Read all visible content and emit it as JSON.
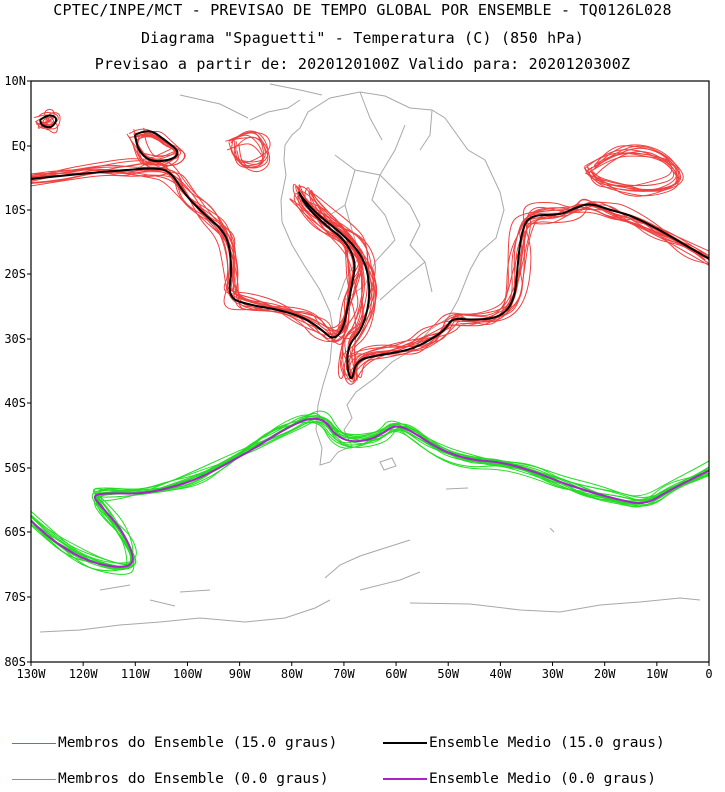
{
  "header": {
    "line1": "CPTEC/INPE/MCT - PREVISAO DE TEMPO GLOBAL POR ENSEMBLE - TQ0126L028",
    "line2": "Diagrama \"Spaguetti\" - Temperatura (C) (850 hPa)",
    "line3": "Previsao a partir de: 2020120100Z  Valido para: 2020120300Z"
  },
  "map": {
    "lat_ticks": [
      "10N",
      "EQ",
      "10S",
      "20S",
      "30S",
      "40S",
      "50S",
      "60S",
      "70S",
      "80S"
    ],
    "lon_ticks": [
      "130W",
      "120W",
      "110W",
      "100W",
      "90W",
      "80W",
      "70W",
      "60W",
      "50W",
      "40W",
      "30W",
      "20W",
      "10W",
      "0"
    ],
    "colors": {
      "member_15": "#f04040",
      "mean_15": "#000000",
      "member_0": "#22dd22",
      "mean_0": "#aa22cc",
      "coast": "#a8a8a8"
    }
  },
  "legend": {
    "items": [
      {
        "label": "Membros do Ensemble (15.0 graus)",
        "color": "#f04040"
      },
      {
        "label": "Ensemble Medio (15.0 graus)",
        "color": "#000000"
      },
      {
        "label": "Membros do Ensemble (0.0 graus)",
        "color": "#22dd22"
      },
      {
        "label": "Ensemble Medio (0.0 graus)",
        "color": "#aa22cc"
      }
    ]
  }
}
